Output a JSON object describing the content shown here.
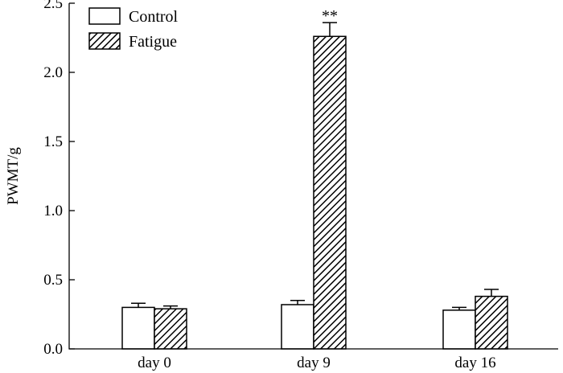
{
  "chart_data": {
    "type": "bar",
    "categories": [
      "day 0",
      "day 9",
      "day 16"
    ],
    "series": [
      {
        "name": "Control",
        "values": [
          0.3,
          0.32,
          0.28
        ],
        "errors": [
          0.03,
          0.03,
          0.02
        ],
        "pattern": "open",
        "color": "#ffffff"
      },
      {
        "name": "Fatigue",
        "values": [
          0.29,
          2.26,
          0.38
        ],
        "errors": [
          0.02,
          0.1,
          0.05
        ],
        "pattern": "hatched",
        "color": "#000000"
      }
    ],
    "annotations": [
      {
        "category": "day 9",
        "series": "Fatigue",
        "text": "**"
      }
    ],
    "ylabel": "PWMT/g",
    "xlabel": "",
    "ylim": [
      0,
      2.5
    ],
    "yticks": [
      0.0,
      0.5,
      1.0,
      1.5,
      2.0,
      2.5
    ],
    "ytick_labels": [
      "0.0",
      "0.5",
      "1.0",
      "1.5",
      "2.0",
      "2.5"
    ],
    "legend_position": "top-left",
    "grid": false
  }
}
